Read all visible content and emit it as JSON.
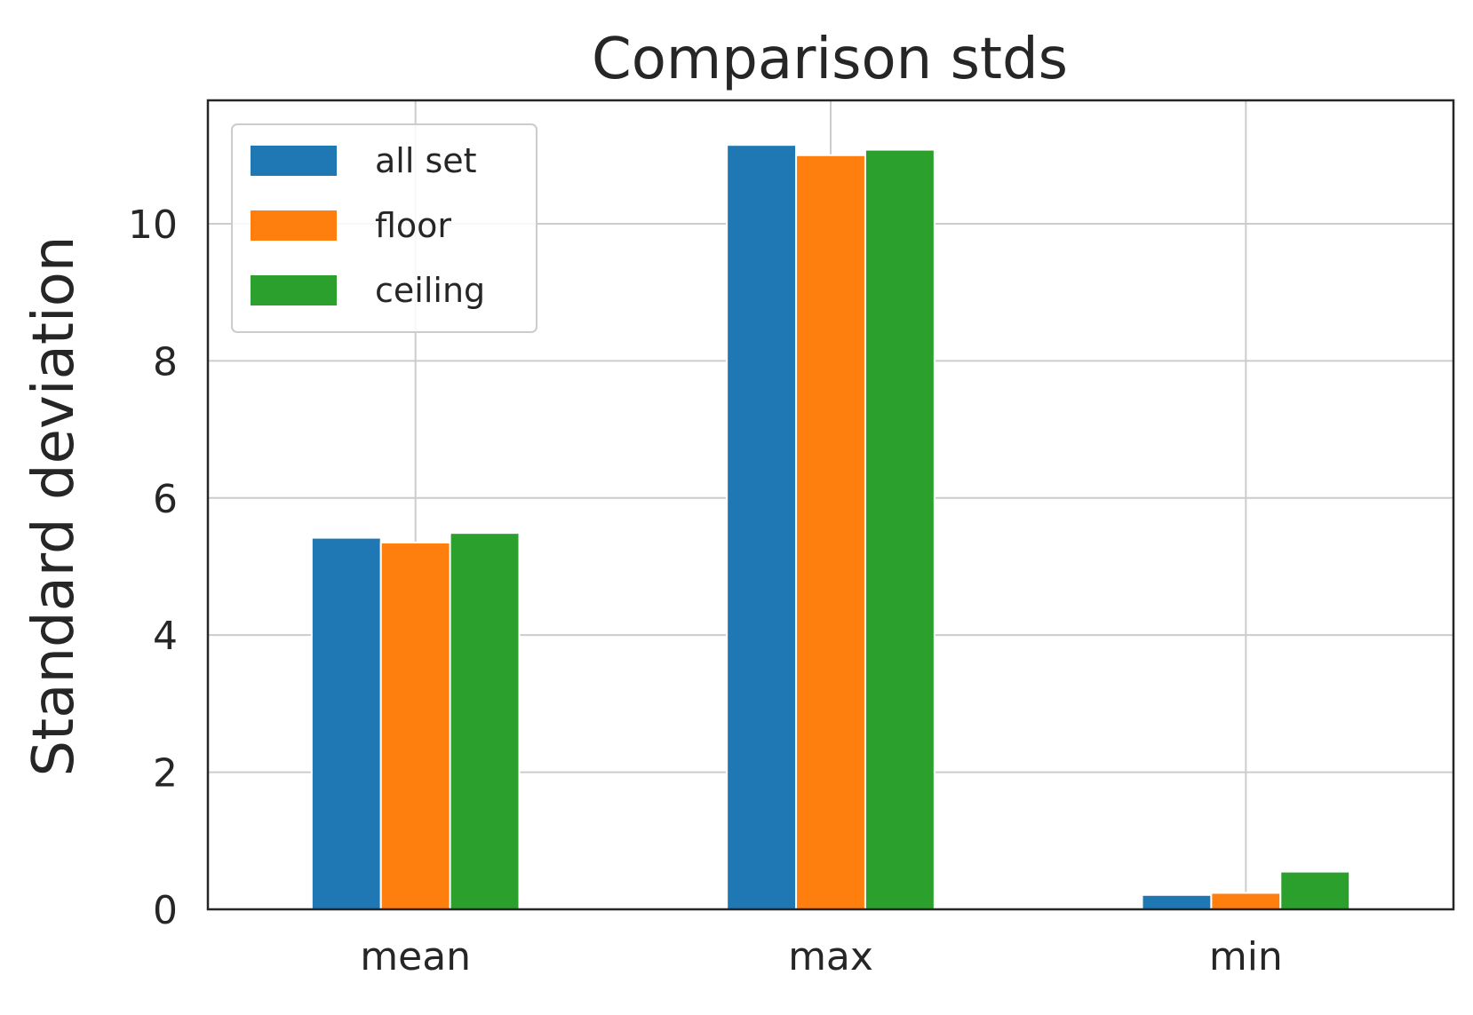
{
  "chart_data": {
    "type": "bar",
    "title": "Comparison stds",
    "xlabel": "",
    "ylabel": "Standard deviation",
    "categories": [
      "mean",
      "max",
      "min"
    ],
    "series": [
      {
        "name": "all set",
        "color": "#1f77b4",
        "values": [
          5.42,
          11.15,
          0.21
        ]
      },
      {
        "name": "floor",
        "color": "#ff7f0e",
        "values": [
          5.35,
          11.0,
          0.24
        ]
      },
      {
        "name": "ceiling",
        "color": "#2ca02c",
        "values": [
          5.49,
          11.08,
          0.55
        ]
      }
    ],
    "ylim": [
      0,
      11.8
    ],
    "yticks": [
      "0",
      "2",
      "4",
      "6",
      "8",
      "10"
    ],
    "grid": true,
    "legend_position": "top-left"
  }
}
